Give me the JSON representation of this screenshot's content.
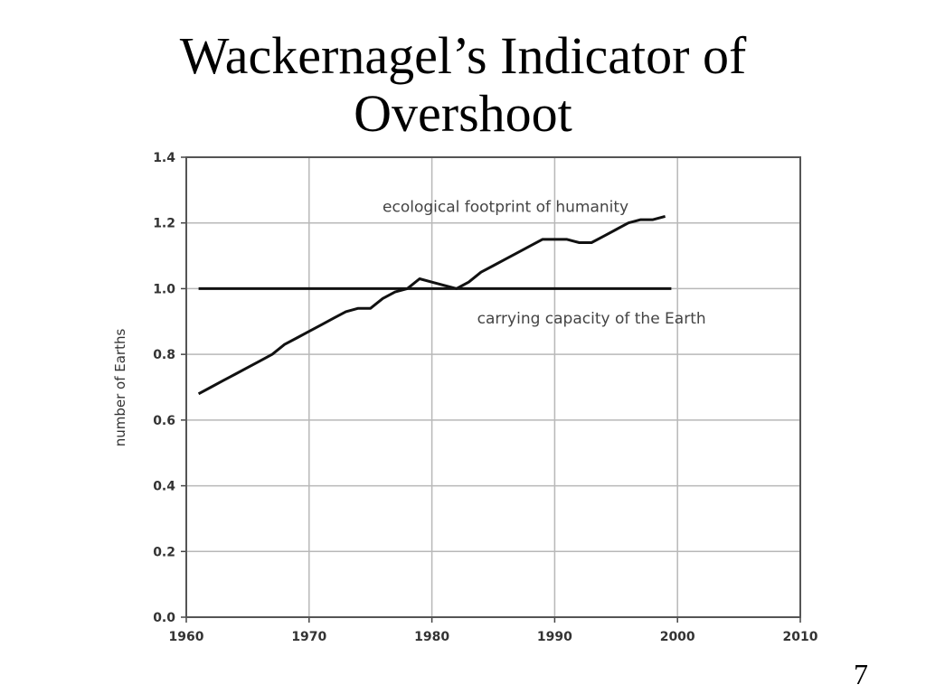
{
  "slide": {
    "title_line1": "Wackernagel’s Indicator of",
    "title_line2": "Overshoot",
    "page_number": "7"
  },
  "chart_data": {
    "type": "line",
    "title": "Wackernagel’s Indicator of Overshoot",
    "xlabel": "",
    "ylabel": "number of Earths",
    "xlim": [
      1960,
      2010
    ],
    "ylim": [
      0.0,
      1.4
    ],
    "x_ticks": [
      "1960",
      "1970",
      "1980",
      "1990",
      "2000",
      "2010"
    ],
    "y_ticks": [
      "0.0",
      "0.2",
      "0.4",
      "0.6",
      "0.8",
      "1.0",
      "1.2",
      "1.4"
    ],
    "grid": true,
    "series": [
      {
        "name": "ecological footprint of humanity",
        "x": [
          1961,
          1962,
          1963,
          1964,
          1965,
          1966,
          1967,
          1968,
          1969,
          1970,
          1971,
          1972,
          1973,
          1974,
          1975,
          1976,
          1977,
          1978,
          1979,
          1980,
          1981,
          1982,
          1983,
          1984,
          1985,
          1986,
          1987,
          1988,
          1989,
          1990,
          1991,
          1992,
          1993,
          1994,
          1995,
          1996,
          1997,
          1998,
          1999
        ],
        "y": [
          0.68,
          0.7,
          0.72,
          0.74,
          0.76,
          0.78,
          0.8,
          0.83,
          0.85,
          0.87,
          0.89,
          0.91,
          0.93,
          0.94,
          0.94,
          0.97,
          0.99,
          1.0,
          1.03,
          1.02,
          1.01,
          1.0,
          1.02,
          1.05,
          1.07,
          1.09,
          1.11,
          1.13,
          1.15,
          1.15,
          1.15,
          1.14,
          1.14,
          1.16,
          1.18,
          1.2,
          1.21,
          1.21,
          1.22
        ],
        "color": "#111111"
      },
      {
        "name": "carrying capacity of the Earth",
        "x": [
          1961,
          1999.5
        ],
        "y": [
          1.0,
          1.0
        ],
        "color": "#111111"
      }
    ],
    "annotations": [
      {
        "text": "ecological footprint of humanity",
        "x": 1986,
        "y": 1.25
      },
      {
        "text": "carrying capacity of the Earth",
        "x": 1993,
        "y": 0.91
      }
    ]
  }
}
